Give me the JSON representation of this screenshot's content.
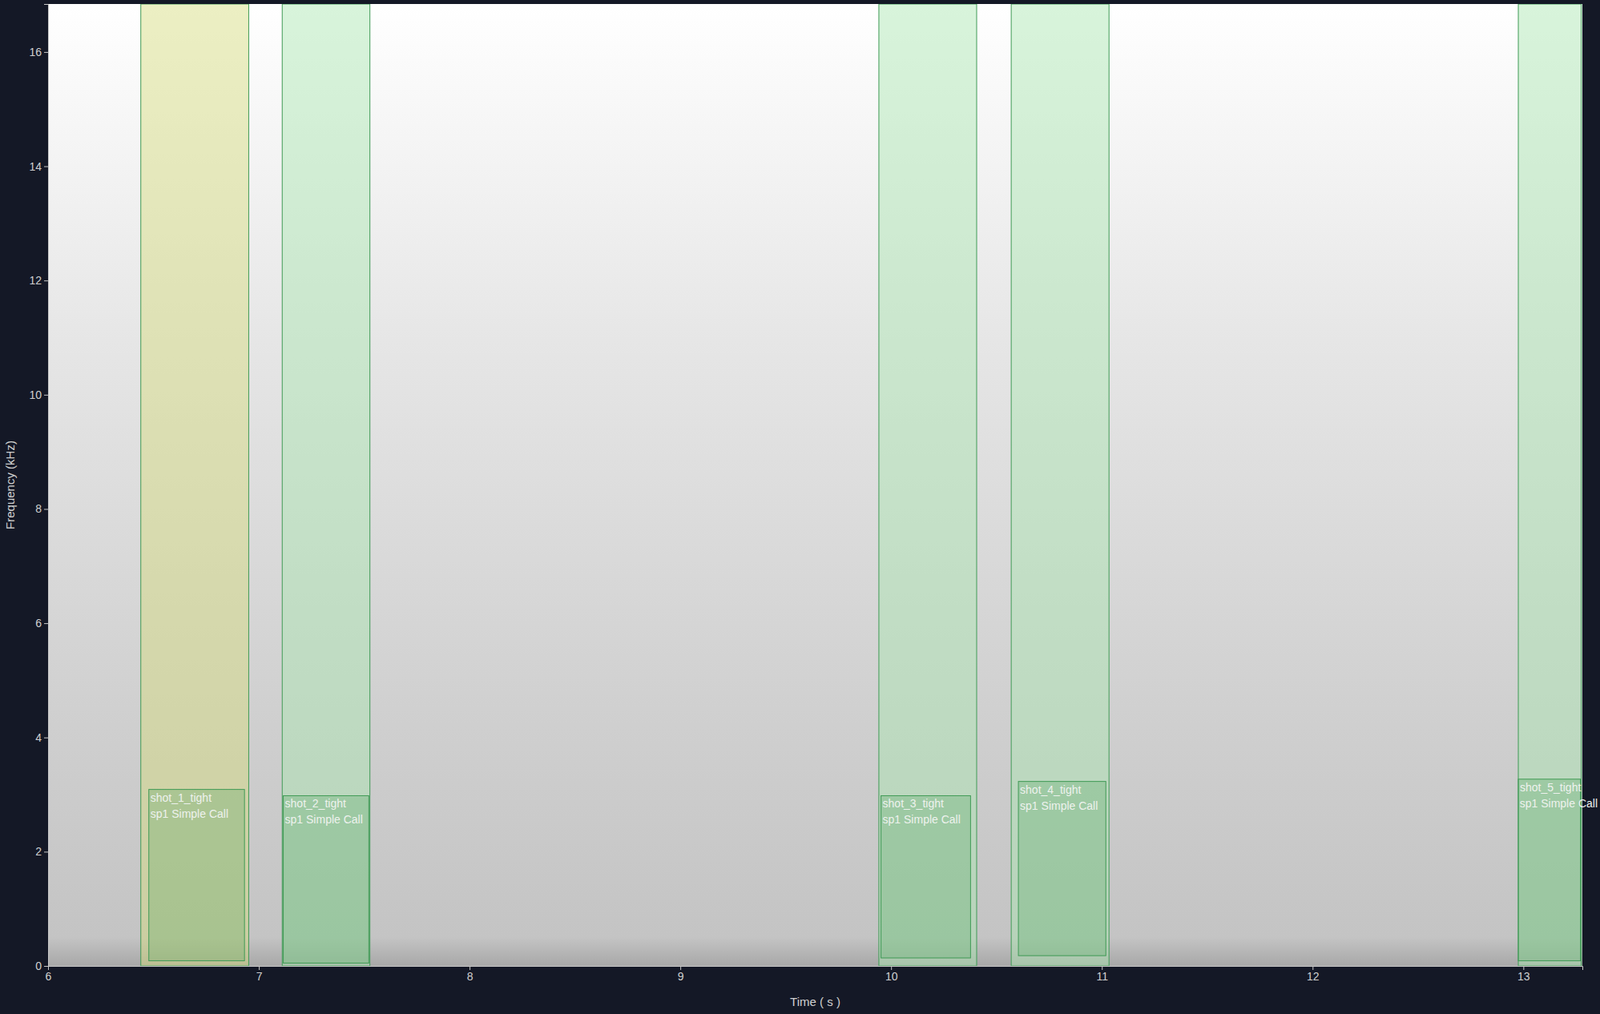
{
  "chart_data": {
    "type": "spectrogram",
    "x_label": "Time ( s )",
    "y_label": "Frequency (kHz)",
    "xlim": [
      6,
      13.28
    ],
    "ylim": [
      0,
      16.84
    ],
    "xticks": [
      6,
      7,
      8,
      9,
      10,
      11,
      12,
      13
    ],
    "yticks": [
      0,
      2,
      4,
      6,
      8,
      10,
      12,
      14,
      16
    ],
    "annotations": [
      {
        "label": "shot_1_tight",
        "class": "sp1 Simple Call",
        "color": "#d4dc7a",
        "x": [
          6.44,
          6.952
        ],
        "box_x": [
          6.478,
          6.932
        ],
        "box_y": [
          0.09,
          3.09
        ]
      },
      {
        "label": "shot_2_tight",
        "class": "sp1 Simple Call",
        "color": "#a8e6b0",
        "x": [
          7.111,
          7.527
        ],
        "box_x": [
          7.116,
          7.522
        ],
        "box_y": [
          0.05,
          2.98
        ]
      },
      {
        "label": "shot_3_tight",
        "class": "sp1 Simple Call",
        "color": "#a8e6b0",
        "x": [
          9.942,
          10.406
        ],
        "box_x": [
          9.952,
          10.377
        ],
        "box_y": [
          0.14,
          2.98
        ]
      },
      {
        "label": "shot_4_tight",
        "class": "sp1 Simple Call",
        "color": "#a8e6b0",
        "x": [
          10.57,
          11.034
        ],
        "box_x": [
          10.604,
          11.019
        ],
        "box_y": [
          0.18,
          3.23
        ]
      },
      {
        "label": "shot_5_tight",
        "class": "sp1 Simple Call",
        "color": "#a8e6b0",
        "x": [
          12.976,
          13.275
        ],
        "box_x": [
          12.976,
          13.271
        ],
        "box_y": [
          0.09,
          3.27
        ]
      }
    ]
  }
}
